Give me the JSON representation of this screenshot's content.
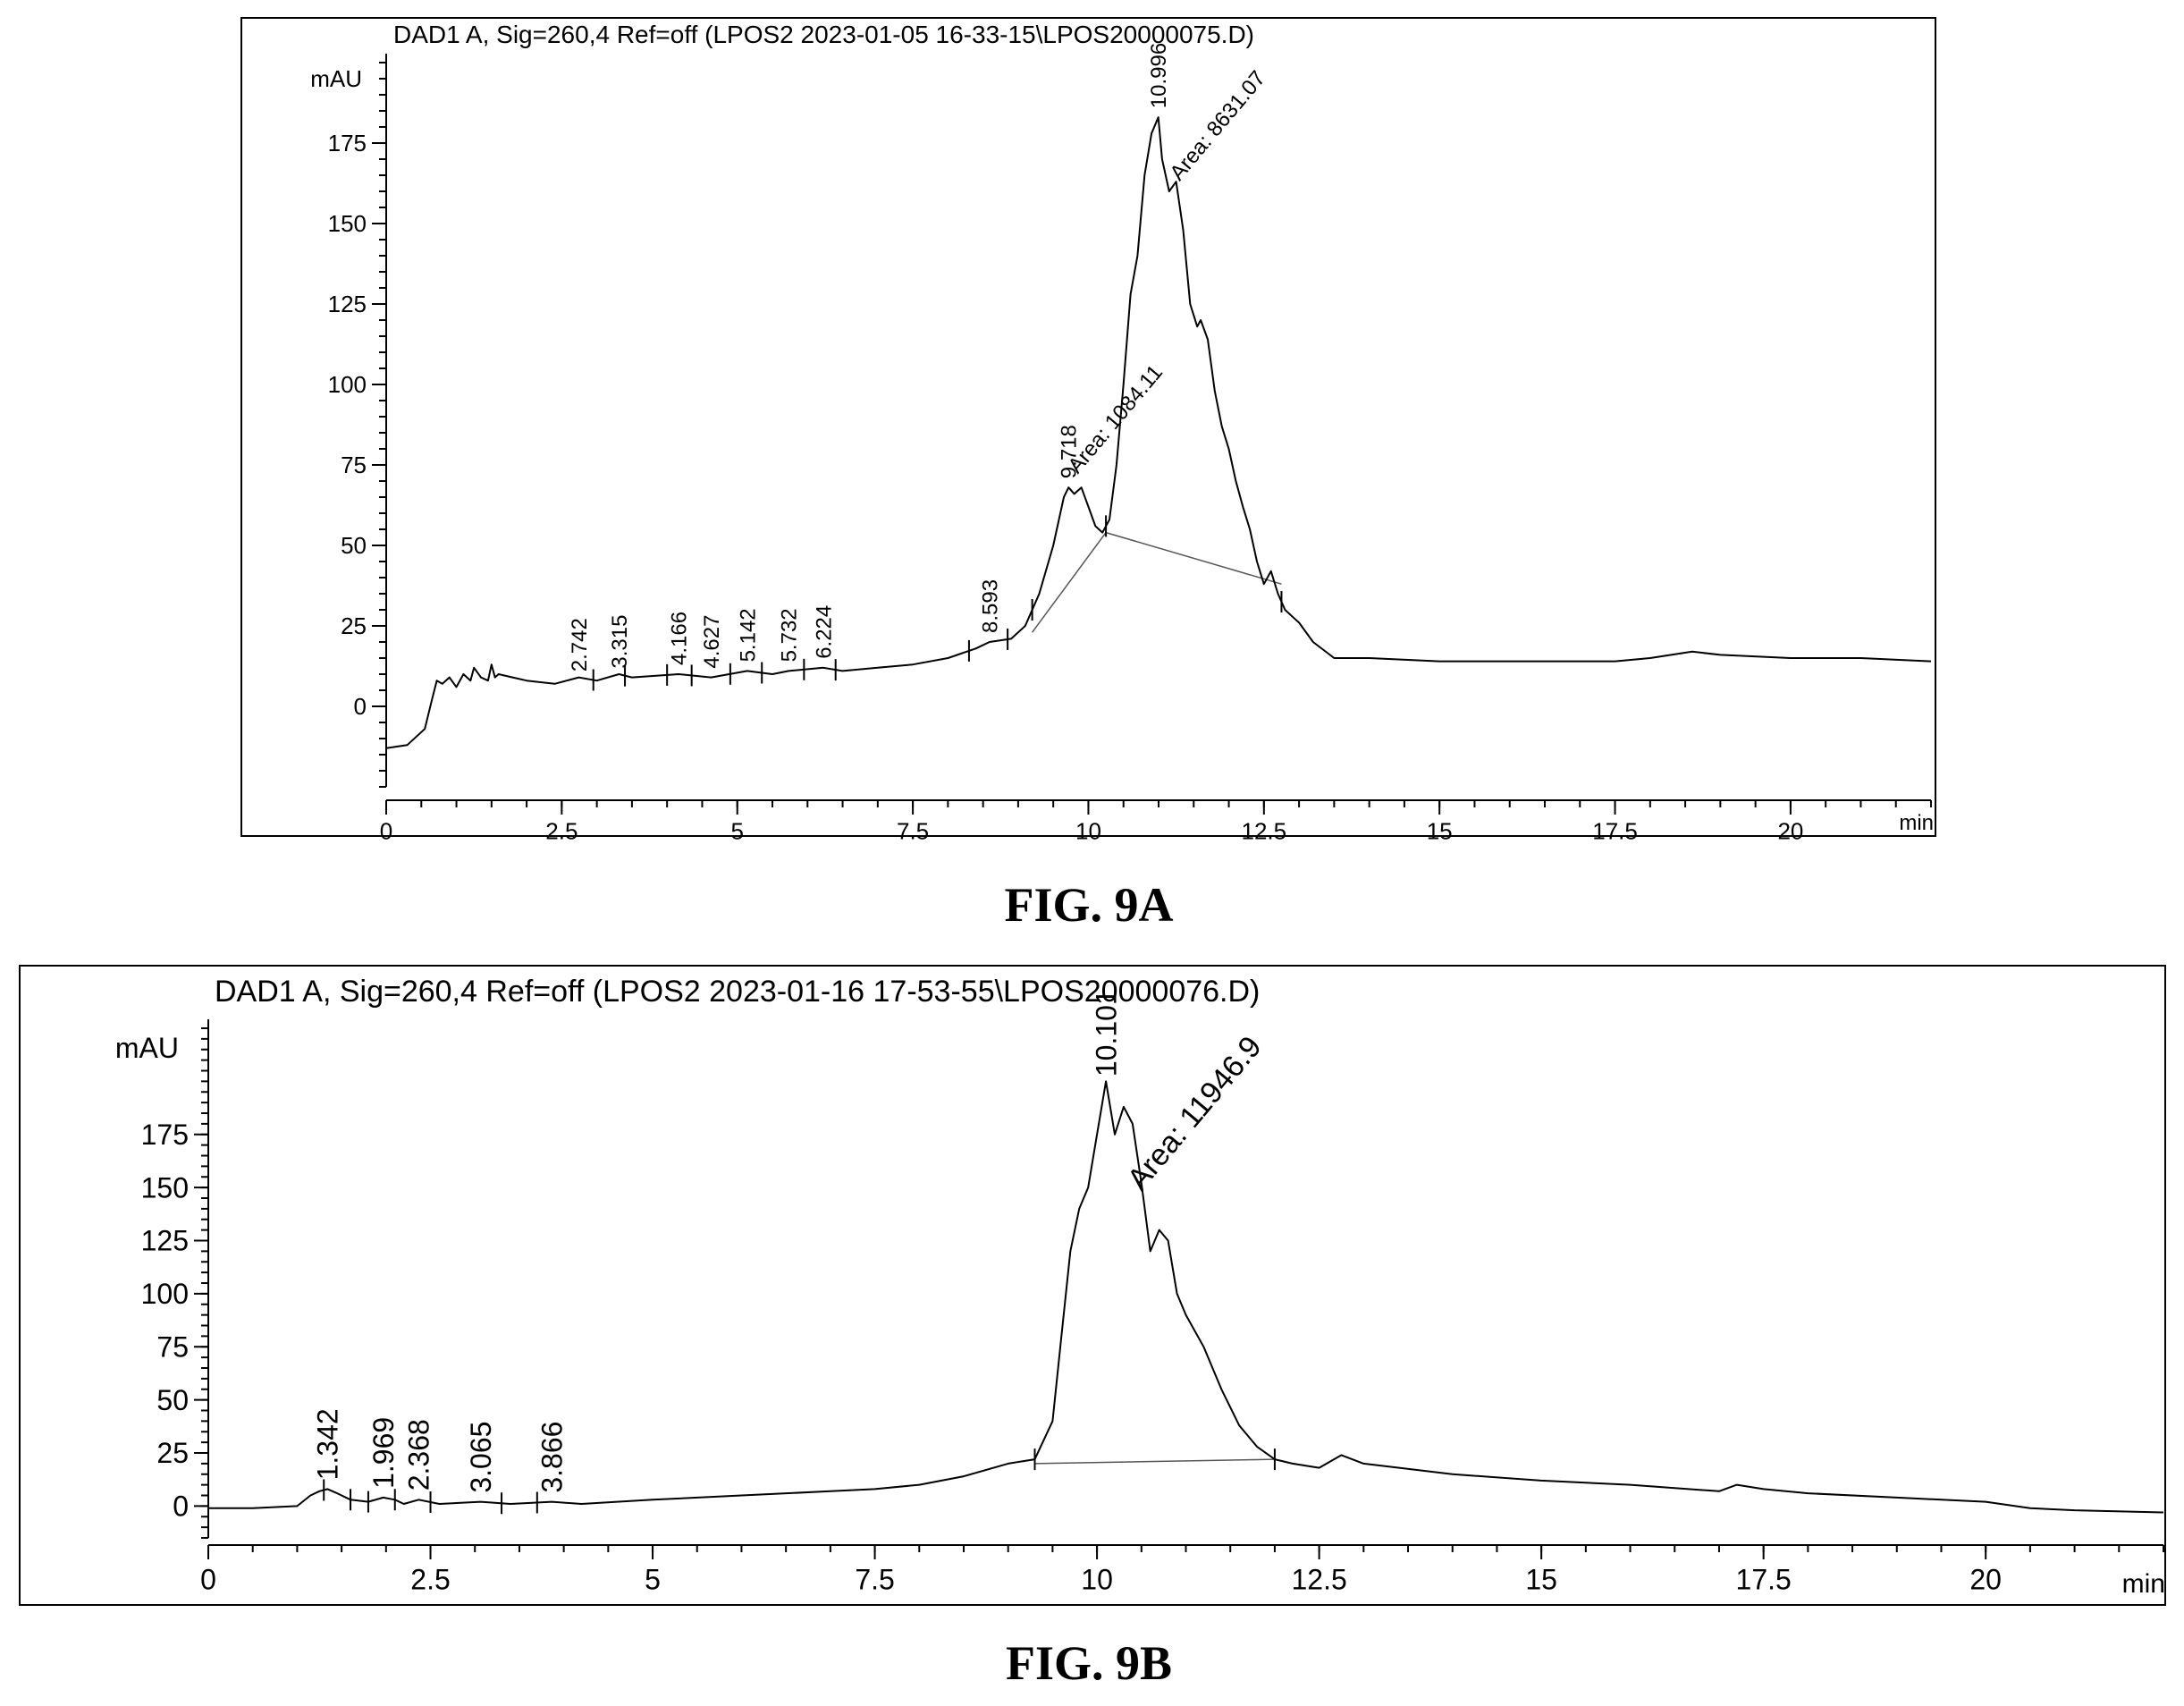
{
  "chart_data": [
    {
      "type": "line",
      "caption": "FIG. 9A",
      "title": "DAD1 A, Sig=260,4 Ref=off (LPOS2 2023-01-05 16-33-15\\LPOS20000075.D)",
      "ylabel": "mAU",
      "xlabel": "min",
      "xlim": [
        0,
        22
      ],
      "ylim": [
        -25,
        200
      ],
      "xticks": [
        0,
        2.5,
        5,
        7.5,
        10,
        12.5,
        15,
        17.5,
        20
      ],
      "xtick_labels": [
        "0",
        "2.5",
        "5",
        "7.5",
        "10",
        "12.5",
        "15",
        "17.5",
        "20"
      ],
      "yticks": [
        0,
        25,
        50,
        75,
        100,
        125,
        150,
        175
      ],
      "ytick_labels": [
        "0",
        "25",
        "50",
        "75",
        "100",
        "125",
        "150",
        "175"
      ],
      "series": [
        {
          "x": [
            0,
            0.3,
            0.55,
            0.65,
            0.72,
            0.8,
            0.9,
            1.0,
            1.1,
            1.2,
            1.25,
            1.35,
            1.45,
            1.5,
            1.55,
            1.6,
            1.8,
            2.0,
            2.4,
            2.742,
            3.0,
            3.315,
            3.5,
            4.166,
            4.627,
            5.142,
            5.5,
            5.732,
            6.224,
            6.5,
            7.0,
            7.5,
            8.0,
            8.4,
            8.593,
            8.9,
            9.1,
            9.3,
            9.5,
            9.65,
            9.718,
            9.8,
            9.9,
            10.0,
            10.1,
            10.2,
            10.3,
            10.4,
            10.5,
            10.6,
            10.7,
            10.8,
            10.9,
            10.996,
            11.05,
            11.15,
            11.25,
            11.35,
            11.45,
            11.55,
            11.6,
            11.7,
            11.8,
            11.9,
            12.0,
            12.1,
            12.2,
            12.3,
            12.4,
            12.5,
            12.6,
            12.7,
            12.8,
            12.9,
            13.0,
            13.2,
            13.5,
            14.0,
            15.0,
            16.0,
            17.0,
            17.5,
            18.0,
            18.6,
            19.0,
            20.0,
            21.0,
            22.0
          ],
          "y": [
            -13,
            -12,
            -7,
            2,
            8,
            7,
            9,
            6,
            10,
            8,
            12,
            9,
            8,
            13,
            9,
            10,
            9,
            8,
            7,
            9,
            8,
            10,
            9,
            10,
            9,
            11,
            10,
            11,
            12,
            11,
            12,
            13,
            15,
            18,
            20,
            21,
            25,
            35,
            50,
            65,
            68,
            66,
            68,
            62,
            56,
            54,
            58,
            75,
            100,
            128,
            140,
            165,
            178,
            183,
            170,
            160,
            163,
            148,
            125,
            118,
            120,
            114,
            98,
            87,
            80,
            70,
            62,
            55,
            45,
            38,
            42,
            35,
            30,
            28,
            26,
            20,
            15,
            15,
            14,
            14,
            14,
            14,
            15,
            17,
            16,
            15,
            15,
            14
          ]
        }
      ],
      "peak_labels": [
        "2.742",
        "3.315",
        "4.166",
        "4.627",
        "5.142",
        "5.732",
        "6.224",
        "8.593",
        "9.718",
        "10.996"
      ],
      "peak_label_x": [
        2.742,
        3.315,
        4.166,
        4.627,
        5.142,
        5.732,
        6.224,
        8.593,
        9.718,
        10.996
      ],
      "peak_label_y": [
        8,
        9,
        10,
        9,
        11,
        11,
        12,
        20,
        68,
        183
      ],
      "area_labels": [
        "Area: 1084.11",
        "Area: 8631.07"
      ],
      "area_label_x": [
        9.85,
        11.3
      ],
      "area_label_y": [
        72,
        163
      ],
      "integration_baselines": [
        {
          "x": [
            9.2,
            10.25
          ],
          "y": [
            23,
            54
          ]
        },
        {
          "x": [
            10.25,
            12.75
          ],
          "y": [
            54,
            38
          ]
        }
      ],
      "integration_marks_x": [
        2.95,
        3.4,
        4.0,
        4.35,
        4.9,
        5.35,
        5.95,
        6.4,
        8.3,
        8.85,
        9.2,
        10.25,
        12.75
      ]
    },
    {
      "type": "line",
      "caption": "FIG. 9B",
      "title": "DAD1 A, Sig=260,4 Ref=off (LPOS2 2023-01-16 17-53-55\\LPOS20000076.D)",
      "ylabel": "mAU",
      "xlabel": "min",
      "xlim": [
        0,
        22
      ],
      "ylim": [
        -15,
        225
      ],
      "xticks": [
        0,
        2.5,
        5,
        7.5,
        10,
        12.5,
        15,
        17.5,
        20
      ],
      "xtick_labels": [
        "0",
        "2.5",
        "5",
        "7.5",
        "10",
        "12.5",
        "15",
        "17.5",
        "20"
      ],
      "yticks": [
        0,
        25,
        50,
        75,
        100,
        125,
        150,
        175
      ],
      "ytick_labels": [
        "0",
        "25",
        "50",
        "75",
        "100",
        "125",
        "150",
        "175"
      ],
      "series": [
        {
          "x": [
            0,
            0.5,
            1.0,
            1.15,
            1.25,
            1.342,
            1.45,
            1.6,
            1.8,
            1.969,
            2.1,
            2.2,
            2.368,
            2.6,
            3.065,
            3.4,
            3.866,
            4.2,
            5.0,
            6.0,
            7.0,
            7.5,
            8.0,
            8.5,
            9.0,
            9.3,
            9.5,
            9.6,
            9.7,
            9.8,
            9.9,
            10.0,
            10.101,
            10.2,
            10.3,
            10.4,
            10.5,
            10.6,
            10.7,
            10.8,
            10.9,
            11.0,
            11.2,
            11.4,
            11.6,
            11.8,
            12.0,
            12.2,
            12.5,
            12.75,
            13.0,
            14.0,
            15.0,
            16.0,
            17.0,
            17.2,
            17.5,
            18.0,
            19.0,
            20.0,
            20.5,
            21.0,
            22.0
          ],
          "y": [
            -1,
            -1,
            0,
            5,
            7,
            8,
            6,
            3,
            2,
            4,
            3,
            1,
            3,
            1,
            2,
            1,
            2,
            1,
            3,
            5,
            7,
            8,
            10,
            14,
            20,
            22,
            40,
            80,
            120,
            140,
            150,
            175,
            200,
            175,
            188,
            180,
            152,
            120,
            130,
            125,
            100,
            90,
            75,
            55,
            38,
            28,
            22,
            20,
            18,
            24,
            20,
            15,
            12,
            10,
            7,
            10,
            8,
            6,
            4,
            2,
            -1,
            -2,
            -3
          ]
        }
      ],
      "peak_labels": [
        "1.342",
        "1.969",
        "2.368",
        "3.065",
        "3.866",
        "10.101"
      ],
      "peak_label_x": [
        1.342,
        1.969,
        2.368,
        3.065,
        3.866,
        10.101
      ],
      "peak_label_y": [
        8,
        4,
        3,
        2,
        2,
        198
      ],
      "area_labels": [
        "Area: 11946.9"
      ],
      "area_label_x": [
        10.5
      ],
      "area_label_y": [
        148
      ],
      "integration_baselines": [
        {
          "x": [
            9.3,
            12.0
          ],
          "y": [
            20,
            22
          ]
        }
      ],
      "integration_marks_x": [
        1.3,
        1.6,
        1.8,
        2.1,
        2.5,
        3.3,
        3.7,
        9.3,
        12.0
      ]
    }
  ]
}
